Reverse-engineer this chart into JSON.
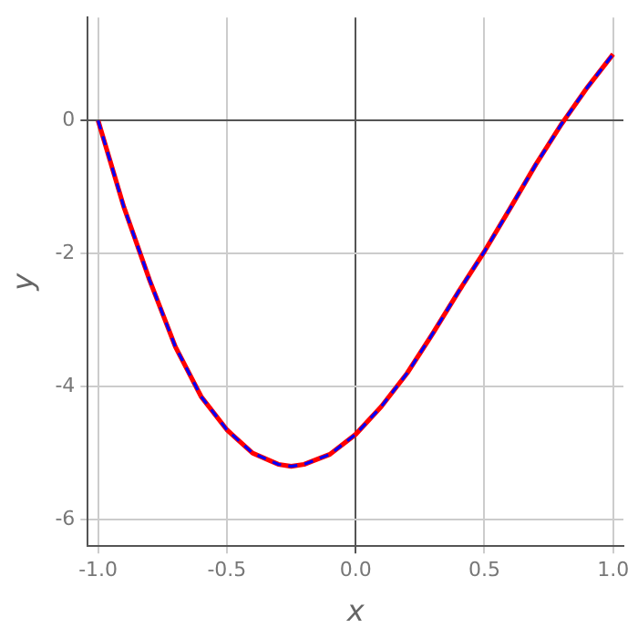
{
  "chart_data": {
    "type": "line",
    "xlabel": "x",
    "ylabel": "y",
    "x": [
      -1,
      -0.9,
      -0.8,
      -0.7,
      -0.6,
      -0.5,
      -0.4,
      -0.3,
      -0.25,
      -0.2,
      -0.1,
      0,
      0.1,
      0.2,
      0.3,
      0.4,
      0.5,
      0.6,
      0.7,
      0.8,
      0.9,
      1
    ],
    "series": [
      {
        "color": "#ff0000",
        "line_style": "solid",
        "values": [
          0,
          -1.3,
          -2.4,
          -3.4,
          -4.15,
          -4.65,
          -5.0,
          -5.17,
          -5.2,
          -5.17,
          -5.02,
          -4.72,
          -4.3,
          -3.8,
          -3.2,
          -2.57,
          -1.97,
          -1.32,
          -0.66,
          -0.05,
          0.5,
          1.0
        ]
      },
      {
        "color": "#0000ff",
        "line_style": "dashed",
        "values": [
          0,
          -1.3,
          -2.4,
          -3.4,
          -4.15,
          -4.65,
          -5.0,
          -5.17,
          -5.2,
          -5.17,
          -5.02,
          -4.72,
          -4.3,
          -3.8,
          -3.2,
          -2.57,
          -1.97,
          -1.32,
          -0.66,
          -0.05,
          0.5,
          1.0
        ]
      }
    ],
    "xlim": [
      -1.04,
      1.04
    ],
    "xticks": [
      {
        "value": -1,
        "label": "-1.0"
      },
      {
        "value": -0.5,
        "label": "-0.5"
      },
      {
        "value": 0,
        "label": "0.0"
      },
      {
        "value": 0.5,
        "label": "0.5"
      },
      {
        "value": 1,
        "label": "1.0"
      }
    ],
    "ylim": [
      -6.4,
      1.55
    ],
    "yticks": [
      -6,
      -4,
      -2,
      0
    ],
    "grid": true,
    "legend": false,
    "marker": "none"
  }
}
